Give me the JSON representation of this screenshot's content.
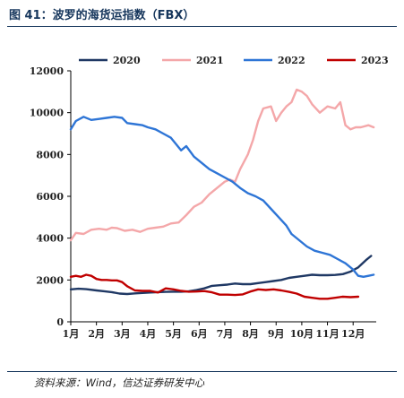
{
  "header": {
    "title": "图 41：波罗的海货运指数（FBX）"
  },
  "footer": {
    "source": "资料来源：Wind，信达证券研发中心"
  },
  "chart_data": {
    "type": "line",
    "title": "",
    "xlabel": "",
    "ylabel": "",
    "ylim": [
      0,
      12000
    ],
    "yticks": [
      "0",
      "2000",
      "4000",
      "6000",
      "8000",
      "10000",
      "12000"
    ],
    "categories": [
      "1月",
      "2月",
      "3月",
      "4月",
      "5月",
      "6月",
      "7月",
      "8月",
      "9月",
      "10月",
      "11月",
      "12月"
    ],
    "legend_position": "top",
    "grid": false,
    "series": [
      {
        "name": "2020",
        "color": "#1f3864",
        "x": [
          1.0,
          1.3,
          1.6,
          2.0,
          2.3,
          2.6,
          2.9,
          3.2,
          3.5,
          3.8,
          4.1,
          4.4,
          4.7,
          5.0,
          5.3,
          5.6,
          5.9,
          6.2,
          6.5,
          6.8,
          7.1,
          7.4,
          7.7,
          8.0,
          8.3,
          8.6,
          8.9,
          9.2,
          9.5,
          9.8,
          10.1,
          10.4,
          10.7,
          11.0,
          11.3,
          11.6,
          11.9,
          12.2,
          12.5,
          12.7
        ],
        "values": [
          1550,
          1580,
          1560,
          1500,
          1460,
          1420,
          1350,
          1330,
          1360,
          1380,
          1400,
          1420,
          1430,
          1440,
          1440,
          1460,
          1520,
          1600,
          1720,
          1750,
          1780,
          1830,
          1800,
          1800,
          1850,
          1900,
          1950,
          2000,
          2100,
          2150,
          2200,
          2250,
          2230,
          2230,
          2240,
          2280,
          2400,
          2600,
          2950,
          3150
        ]
      },
      {
        "name": "2021",
        "color": "#f4a7a9",
        "x": [
          1.0,
          1.2,
          1.5,
          1.8,
          2.1,
          2.4,
          2.6,
          2.8,
          3.1,
          3.4,
          3.7,
          4.0,
          4.3,
          4.6,
          4.9,
          5.2,
          5.5,
          5.8,
          6.1,
          6.4,
          6.7,
          7.0,
          7.2,
          7.4,
          7.6,
          7.9,
          8.1,
          8.3,
          8.5,
          8.8,
          9.0,
          9.2,
          9.4,
          9.6,
          9.8,
          10.0,
          10.2,
          10.4,
          10.7,
          11.0,
          11.3,
          11.5,
          11.7,
          11.9,
          12.1,
          12.3,
          12.6,
          12.8
        ],
        "values": [
          3900,
          4250,
          4200,
          4400,
          4450,
          4400,
          4500,
          4480,
          4350,
          4400,
          4300,
          4450,
          4500,
          4550,
          4700,
          4750,
          5100,
          5500,
          5700,
          6100,
          6400,
          6700,
          6800,
          6700,
          7300,
          8000,
          8700,
          9600,
          10200,
          10300,
          9600,
          10000,
          10300,
          10500,
          11100,
          11000,
          10800,
          10400,
          10000,
          10300,
          10200,
          10500,
          9400,
          9200,
          9300,
          9300,
          9400,
          9300
        ]
      },
      {
        "name": "2022",
        "color": "#2e75d6",
        "x": [
          1.0,
          1.2,
          1.5,
          1.8,
          2.1,
          2.4,
          2.7,
          3.0,
          3.2,
          3.5,
          3.8,
          4.0,
          4.3,
          4.6,
          4.9,
          5.1,
          5.3,
          5.5,
          5.8,
          6.1,
          6.4,
          6.7,
          7.0,
          7.3,
          7.6,
          7.9,
          8.2,
          8.5,
          8.8,
          9.1,
          9.4,
          9.6,
          9.9,
          10.2,
          10.5,
          10.8,
          11.1,
          11.4,
          11.7,
          12.0,
          12.2,
          12.4,
          12.6,
          12.8
        ],
        "values": [
          9200,
          9600,
          9800,
          9650,
          9700,
          9750,
          9800,
          9750,
          9500,
          9450,
          9400,
          9300,
          9200,
          9000,
          8800,
          8500,
          8200,
          8400,
          7900,
          7600,
          7300,
          7100,
          6900,
          6700,
          6400,
          6150,
          6000,
          5800,
          5400,
          5000,
          4600,
          4200,
          3900,
          3600,
          3400,
          3300,
          3200,
          3000,
          2800,
          2500,
          2200,
          2150,
          2200,
          2250
        ]
      },
      {
        "name": "2023",
        "color": "#c00000",
        "x": [
          1.0,
          1.2,
          1.4,
          1.6,
          1.8,
          2.0,
          2.2,
          2.4,
          2.6,
          2.8,
          3.0,
          3.2,
          3.5,
          3.8,
          4.1,
          4.4,
          4.7,
          5.0,
          5.3,
          5.6,
          5.9,
          6.2,
          6.5,
          6.8,
          7.1,
          7.4,
          7.7,
          8.0,
          8.3,
          8.6,
          8.9,
          9.2,
          9.5,
          9.8,
          10.1,
          10.4,
          10.7,
          11.0,
          11.3,
          11.6,
          11.9,
          12.2
        ],
        "values": [
          2150,
          2200,
          2150,
          2250,
          2200,
          2050,
          2000,
          2000,
          1980,
          1980,
          1900,
          1700,
          1500,
          1480,
          1480,
          1400,
          1600,
          1550,
          1480,
          1440,
          1450,
          1470,
          1410,
          1300,
          1300,
          1280,
          1310,
          1450,
          1550,
          1520,
          1550,
          1500,
          1430,
          1350,
          1200,
          1150,
          1100,
          1100,
          1150,
          1200,
          1180,
          1200
        ]
      }
    ]
  }
}
